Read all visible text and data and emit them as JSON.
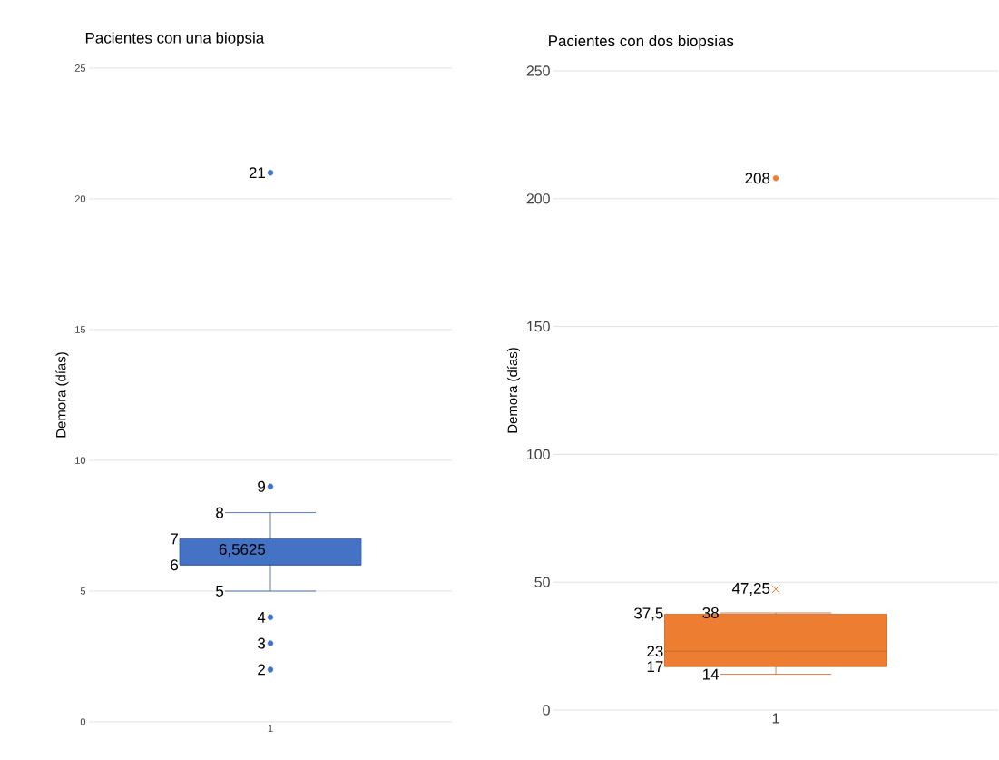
{
  "chart_data": [
    {
      "type": "box",
      "title": "Pacientes con una biopsia",
      "ylabel": "Demora (días)",
      "categories": [
        "1"
      ],
      "color": "#4472c4",
      "boxes": [
        {
          "low": 5,
          "q1": 6,
          "median": 6,
          "q3": 7,
          "high": 8,
          "mean": 6.5625,
          "outliers": [
            2,
            3,
            4,
            9,
            21
          ]
        }
      ],
      "ylim": [
        0,
        25
      ],
      "yticks": [
        0,
        5,
        10,
        15,
        20,
        25
      ],
      "grid": "y",
      "annotations": [
        "7",
        "6",
        "8",
        "5",
        "6,5625",
        "2",
        "3",
        "4",
        "9",
        "21"
      ]
    },
    {
      "type": "box",
      "title": "Pacientes con dos biopsias",
      "ylabel": "Demora (días)",
      "categories": [
        "1"
      ],
      "color": "#ed7d31",
      "boxes": [
        {
          "low": 14,
          "q1": 17,
          "median": 23,
          "q3": 37.5,
          "high": 38,
          "mean": 47.25,
          "outliers": [
            208
          ]
        }
      ],
      "ylim": [
        0,
        250
      ],
      "yticks": [
        0,
        50,
        100,
        150,
        200,
        250
      ],
      "grid": "y",
      "annotations": [
        "37,5",
        "17",
        "23",
        "38",
        "14",
        "47,25",
        "208"
      ]
    }
  ]
}
